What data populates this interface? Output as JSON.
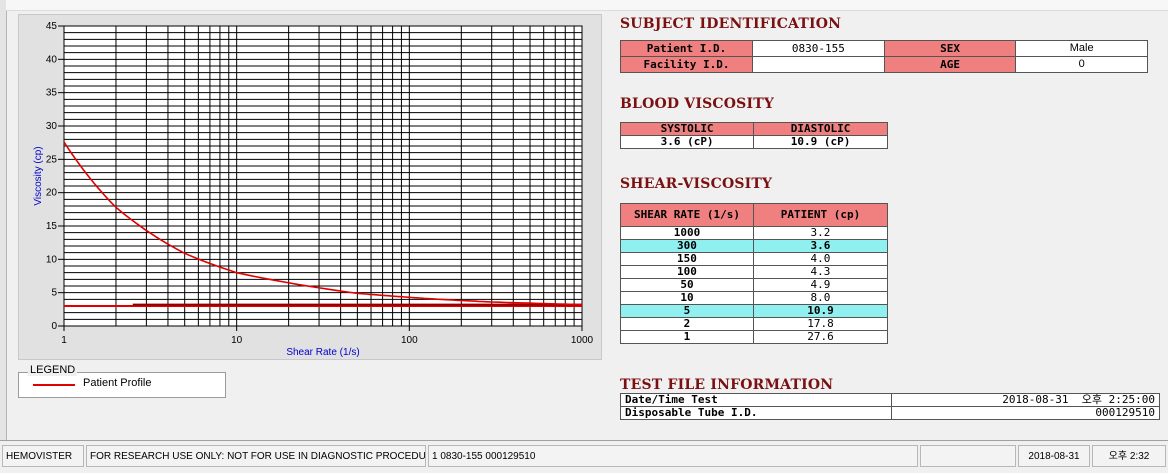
{
  "chart_data": {
    "type": "line",
    "xlabel": "Shear Rate (1/s)",
    "ylabel": "Viscosity (cp)",
    "xscale": "log",
    "xlim": [
      1,
      1000
    ],
    "ylim": [
      0,
      45
    ],
    "xticks": [
      "1",
      "10",
      "100",
      "1000"
    ],
    "yticks": [
      "0",
      "5",
      "10",
      "15",
      "20",
      "25",
      "30",
      "35",
      "40",
      "45"
    ],
    "grid": true,
    "series": [
      {
        "name": "Patient Profile",
        "color": "#e00000",
        "x": [
          1,
          2,
          5,
          10,
          50,
          100,
          150,
          300,
          1000
        ],
        "y": [
          27.6,
          17.8,
          10.9,
          8.0,
          4.9,
          4.3,
          4.0,
          3.6,
          3.2
        ]
      }
    ],
    "reference_lines": [
      {
        "y": 3.0,
        "x_from": 1,
        "x_to": 1000,
        "color": "#e00000"
      },
      {
        "y": 3.2,
        "x_from": 2.5,
        "x_to": 1000,
        "color": "#8b0000"
      }
    ]
  },
  "legend": {
    "title": "LEGEND",
    "entries": [
      {
        "label": "Patient Profile",
        "color": "#e00000"
      }
    ]
  },
  "subject": {
    "title": "SUBJECT IDENTIFICATION",
    "patient_id_label": "Patient I.D.",
    "patient_id": "0830-155",
    "sex_label": "SEX",
    "sex": "Male",
    "facility_id_label": "Facility I.D.",
    "facility_id": "",
    "age_label": "AGE",
    "age": "0"
  },
  "blood_viscosity": {
    "title": "BLOOD VISCOSITY",
    "systolic_label": "SYSTOLIC",
    "diastolic_label": "DIASTOLIC",
    "systolic": "3.6 (cP)",
    "diastolic": "10.9 (cP)"
  },
  "shear_viscosity": {
    "title": "SHEAR-VISCOSITY",
    "col_shear_rate": "SHEAR RATE (1/s)",
    "col_patient": "PATIENT (cp)",
    "rows": [
      {
        "rate": "1000",
        "value": "3.2",
        "highlight": false
      },
      {
        "rate": "300",
        "value": "3.6",
        "highlight": true
      },
      {
        "rate": "150",
        "value": "4.0",
        "highlight": false
      },
      {
        "rate": "100",
        "value": "4.3",
        "highlight": false
      },
      {
        "rate": "50",
        "value": "4.9",
        "highlight": false
      },
      {
        "rate": "10",
        "value": "8.0",
        "highlight": false
      },
      {
        "rate": "5",
        "value": "10.9",
        "highlight": true
      },
      {
        "rate": "2",
        "value": "17.8",
        "highlight": false
      },
      {
        "rate": "1",
        "value": "27.6",
        "highlight": false
      }
    ]
  },
  "test_file": {
    "title": "TEST FILE INFORMATION",
    "datetime_label": "Date/Time Test",
    "datetime": "2018-08-31  오후 2:25:00",
    "tube_label": "Disposable Tube I.D.",
    "tube_id": "000129510"
  },
  "status_bar": {
    "app_name": "HEMOVISTER",
    "notice": "FOR RESEARCH USE ONLY: NOT FOR USE IN DIAGNOSTIC PROCEDURES",
    "record": "1  0830-155  000129510",
    "date": "2018-08-31",
    "time": "오후 2:32"
  }
}
